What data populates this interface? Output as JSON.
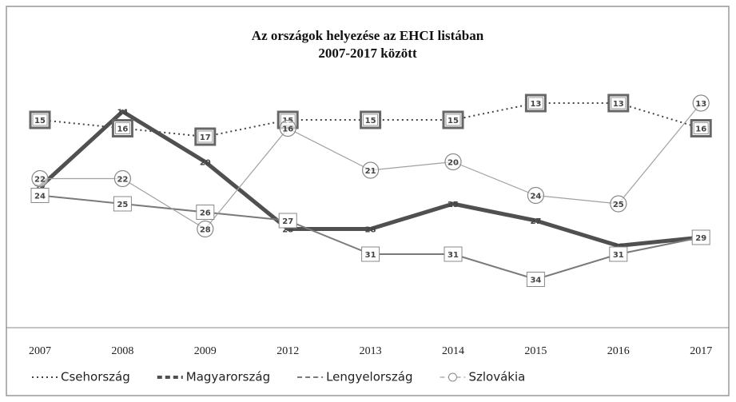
{
  "chart_data": {
    "type": "line",
    "title": [
      "Az országok helyezése az EHCI listában",
      "2007-2017 között"
    ],
    "categories": [
      "2007",
      "2008",
      "2009",
      "2012",
      "2013",
      "2014",
      "2015",
      "2016",
      "2017"
    ],
    "series": [
      {
        "name": "Csehország",
        "color": "#444444",
        "dash": "dotted",
        "width": 2,
        "marker": "double-square",
        "values": [
          15,
          16,
          17,
          15,
          15,
          15,
          13,
          13,
          16
        ]
      },
      {
        "name": "Magyarország",
        "color": "#505050",
        "dash": "solid",
        "width": 5,
        "marker": "none",
        "values": [
          23,
          14,
          20,
          28,
          28,
          25,
          27,
          30,
          29
        ]
      },
      {
        "name": "Lengyelország",
        "color": "#7a7a7a",
        "dash": "solid",
        "width": 2,
        "marker": "square",
        "values": [
          24,
          25,
          26,
          27,
          31,
          31,
          34,
          31,
          29
        ]
      },
      {
        "name": "Szlovákia",
        "color": "#a0a0a0",
        "dash": "solid",
        "width": 1.2,
        "marker": "circle",
        "values": [
          22,
          22,
          28,
          16,
          21,
          20,
          24,
          25,
          13
        ]
      }
    ],
    "ylim": [
      10,
      40
    ],
    "y_inverted": true,
    "legend": "bottom"
  }
}
